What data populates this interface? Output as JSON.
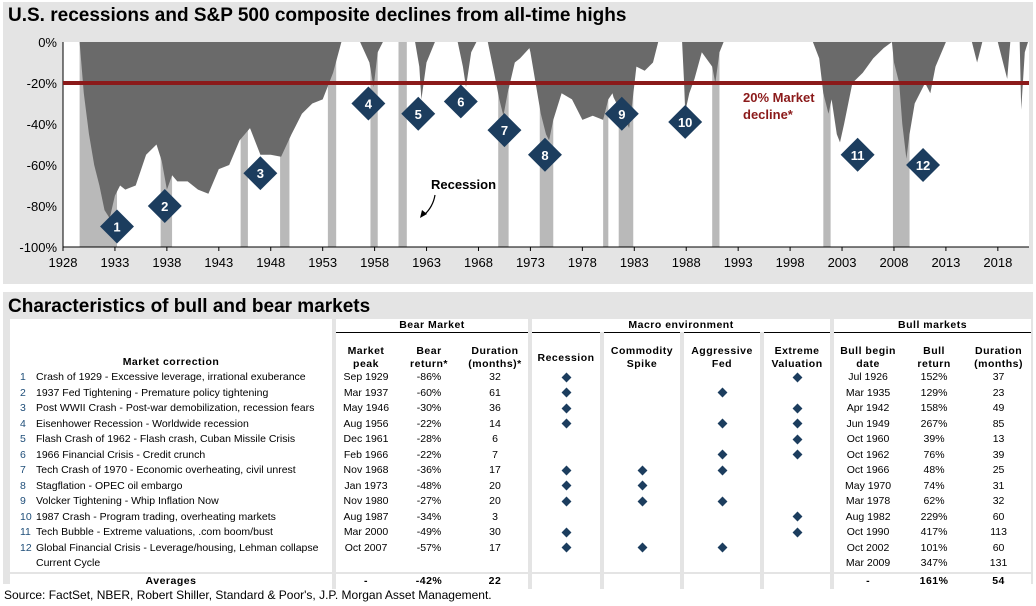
{
  "chart_title": "U.S. recessions and S&P 500 composite declines from all-time highs",
  "table_title": "Characteristics of bull and bear markets",
  "source": "Source: FactSet, NBER, Robert Shiller, Standard & Poor's, J.P. Morgan Asset Management.",
  "colors": {
    "panel_bg": "#e4e4e4",
    "plot_bg": "#ffffff",
    "recession_band": "#b9b9b9",
    "drawdown_area": "#6a6a6a",
    "threshold_line": "#8b1a1a",
    "marker": "#1c3d5e",
    "annotation_text": "#8b1a1a"
  },
  "chart_data": {
    "type": "area",
    "xlim": [
      1928,
      2021
    ],
    "ylim": [
      -100,
      0
    ],
    "x_ticks": [
      1928,
      1933,
      1938,
      1943,
      1948,
      1953,
      1958,
      1963,
      1968,
      1973,
      1978,
      1983,
      1988,
      1993,
      1998,
      2003,
      2008,
      2013,
      2018
    ],
    "y_ticks": [
      0,
      -20,
      -40,
      -60,
      -80,
      -100
    ],
    "y_tick_labels": [
      "0%",
      "-20%",
      "-40%",
      "-60%",
      "-80%",
      "-100%"
    ],
    "threshold": {
      "value": -20,
      "label_line1": "20% Market",
      "label_line2": "decline*"
    },
    "recession_label": "Recession",
    "recessions": [
      [
        1929.6,
        1933.2
      ],
      [
        1937.4,
        1938.5
      ],
      [
        1945.1,
        1945.8
      ],
      [
        1948.9,
        1949.8
      ],
      [
        1953.5,
        1954.3
      ],
      [
        1957.6,
        1958.3
      ],
      [
        1960.3,
        1961.1
      ],
      [
        1969.9,
        1970.9
      ],
      [
        1973.9,
        1975.2
      ],
      [
        1980.0,
        1980.5
      ],
      [
        1981.5,
        1982.9
      ],
      [
        1990.5,
        1991.2
      ],
      [
        2001.2,
        2001.9
      ],
      [
        2007.9,
        2009.5
      ]
    ],
    "drawdown": [
      [
        1928,
        0
      ],
      [
        1929.6,
        0
      ],
      [
        1930.0,
        -25
      ],
      [
        1930.5,
        -45
      ],
      [
        1931.0,
        -60
      ],
      [
        1931.5,
        -70
      ],
      [
        1932.0,
        -82
      ],
      [
        1932.5,
        -86
      ],
      [
        1933.0,
        -75
      ],
      [
        1933.5,
        -70
      ],
      [
        1934.0,
        -72
      ],
      [
        1935.0,
        -70
      ],
      [
        1936.0,
        -55
      ],
      [
        1937.0,
        -50
      ],
      [
        1937.5,
        -58
      ],
      [
        1938.0,
        -72
      ],
      [
        1938.5,
        -65
      ],
      [
        1939.0,
        -68
      ],
      [
        1940.0,
        -68
      ],
      [
        1941.0,
        -72
      ],
      [
        1942.0,
        -74
      ],
      [
        1943.0,
        -62
      ],
      [
        1944.0,
        -60
      ],
      [
        1945.0,
        -48
      ],
      [
        1946.0,
        -42
      ],
      [
        1947.0,
        -55
      ],
      [
        1948.0,
        -55
      ],
      [
        1949.0,
        -56
      ],
      [
        1950.0,
        -45
      ],
      [
        1951.0,
        -35
      ],
      [
        1952.0,
        -30
      ],
      [
        1953.0,
        -28
      ],
      [
        1954.0,
        -15
      ],
      [
        1954.8,
        0
      ],
      [
        1956.6,
        0
      ],
      [
        1957.5,
        -10
      ],
      [
        1957.9,
        -22
      ],
      [
        1958.3,
        -5
      ],
      [
        1958.8,
        0
      ],
      [
        1961.9,
        0
      ],
      [
        1962.3,
        -12
      ],
      [
        1962.5,
        -28
      ],
      [
        1963.0,
        -10
      ],
      [
        1963.8,
        0
      ],
      [
        1966.0,
        0
      ],
      [
        1966.5,
        -12
      ],
      [
        1966.8,
        -22
      ],
      [
        1967.3,
        -5
      ],
      [
        1967.8,
        0
      ],
      [
        1968.9,
        0
      ],
      [
        1969.5,
        -15
      ],
      [
        1970.0,
        -28
      ],
      [
        1970.4,
        -36
      ],
      [
        1970.8,
        -25
      ],
      [
        1971.5,
        -10
      ],
      [
        1972.0,
        -8
      ],
      [
        1972.9,
        -3
      ],
      [
        1973.0,
        -5
      ],
      [
        1973.5,
        -20
      ],
      [
        1974.0,
        -35
      ],
      [
        1974.5,
        -45
      ],
      [
        1974.8,
        -48
      ],
      [
        1975.2,
        -38
      ],
      [
        1976.0,
        -25
      ],
      [
        1977.0,
        -28
      ],
      [
        1978.0,
        -38
      ],
      [
        1979.0,
        -36
      ],
      [
        1980.0,
        -38
      ],
      [
        1980.5,
        -28
      ],
      [
        1980.9,
        -25
      ],
      [
        1981.0,
        -27
      ],
      [
        1981.5,
        -32
      ],
      [
        1982.0,
        -36
      ],
      [
        1982.5,
        -42
      ],
      [
        1982.8,
        -30
      ],
      [
        1983.2,
        -12
      ],
      [
        1984.0,
        -14
      ],
      [
        1984.8,
        -10
      ],
      [
        1985.3,
        0
      ],
      [
        1987.6,
        0
      ],
      [
        1987.8,
        -20
      ],
      [
        1987.9,
        -34
      ],
      [
        1988.3,
        -25
      ],
      [
        1988.8,
        -18
      ],
      [
        1989.5,
        -5
      ],
      [
        1990.5,
        -12
      ],
      [
        1990.8,
        -20
      ],
      [
        1991.2,
        -5
      ],
      [
        1991.6,
        0
      ],
      [
        2000.2,
        0
      ],
      [
        2000.8,
        -8
      ],
      [
        2001.2,
        -25
      ],
      [
        2001.7,
        -35
      ],
      [
        2002.0,
        -28
      ],
      [
        2002.5,
        -45
      ],
      [
        2002.8,
        -49
      ],
      [
        2003.2,
        -40
      ],
      [
        2004.0,
        -20
      ],
      [
        2005.0,
        -15
      ],
      [
        2006.0,
        -8
      ],
      [
        2007.0,
        -3
      ],
      [
        2007.8,
        0
      ],
      [
        2008.0,
        -10
      ],
      [
        2008.5,
        -20
      ],
      [
        2008.8,
        -40
      ],
      [
        2009.2,
        -57
      ],
      [
        2009.5,
        -45
      ],
      [
        2010.0,
        -30
      ],
      [
        2011.0,
        -20
      ],
      [
        2011.5,
        -25
      ],
      [
        2012.0,
        -12
      ],
      [
        2013.0,
        0
      ],
      [
        2015.5,
        0
      ],
      [
        2016.0,
        -10
      ],
      [
        2016.5,
        0
      ],
      [
        2018.0,
        0
      ],
      [
        2018.9,
        -18
      ],
      [
        2019.2,
        0
      ],
      [
        2020.1,
        0
      ],
      [
        2020.25,
        -33
      ],
      [
        2020.6,
        -5
      ],
      [
        2020.9,
        0
      ],
      [
        2021,
        0
      ]
    ],
    "markers": [
      {
        "label": "1",
        "x": 1933.2,
        "y": -90
      },
      {
        "label": "2",
        "x": 1937.8,
        "y": -80
      },
      {
        "label": "3",
        "x": 1947.0,
        "y": -64
      },
      {
        "label": "4",
        "x": 1957.4,
        "y": -30
      },
      {
        "label": "5",
        "x": 1962.2,
        "y": -35
      },
      {
        "label": "6",
        "x": 1966.3,
        "y": -29
      },
      {
        "label": "7",
        "x": 1970.5,
        "y": -43
      },
      {
        "label": "8",
        "x": 1974.4,
        "y": -55
      },
      {
        "label": "9",
        "x": 1981.8,
        "y": -35
      },
      {
        "label": "10",
        "x": 1987.9,
        "y": -39
      },
      {
        "label": "11",
        "x": 2004.5,
        "y": -55
      },
      {
        "label": "12",
        "x": 2010.8,
        "y": -60
      }
    ]
  },
  "table": {
    "groups": {
      "bear": "Bear Market",
      "macro": "Macro environment",
      "bull": "Bull markets"
    },
    "headers": {
      "correction": "Market correction",
      "peak_1": "Market",
      "peak_2": "peak",
      "return_1": "Bear",
      "return_2": "return*",
      "duration_1": "Duration",
      "duration_2": "(months)*",
      "recession": "Recession",
      "commodity_1": "Commodity",
      "commodity_2": "Spike",
      "fed_1": "Aggressive",
      "fed_2": "Fed",
      "valuation_1": "Extreme",
      "valuation_2": "Valuation",
      "bull_begin_1": "Bull begin",
      "bull_begin_2": "date",
      "bull_return_1": "Bull",
      "bull_return_2": "return",
      "bull_duration_1": "Duration",
      "bull_duration_2": "(months)"
    },
    "rows": [
      {
        "n": "1",
        "name": "Crash of 1929 - Excessive leverage, irrational exuberance",
        "peak": "Sep 1929",
        "ret": "-86%",
        "dur": "32",
        "recession": true,
        "commodity": false,
        "fed": false,
        "valuation": true,
        "bull_date": "Jul 1926",
        "bull_ret": "152%",
        "bull_dur": "37"
      },
      {
        "n": "2",
        "name": "1937 Fed Tightening - Premature policy tightening",
        "peak": "Mar 1937",
        "ret": "-60%",
        "dur": "61",
        "recession": true,
        "commodity": false,
        "fed": true,
        "valuation": false,
        "bull_date": "Mar 1935",
        "bull_ret": "129%",
        "bull_dur": "23"
      },
      {
        "n": "3",
        "name": "Post WWII Crash - Post-war demobilization, recession fears",
        "peak": "May 1946",
        "ret": "-30%",
        "dur": "36",
        "recession": true,
        "commodity": false,
        "fed": false,
        "valuation": true,
        "bull_date": "Apr 1942",
        "bull_ret": "158%",
        "bull_dur": "49"
      },
      {
        "n": "4",
        "name": "Eisenhower Recession - Worldwide recession",
        "peak": "Aug 1956",
        "ret": "-22%",
        "dur": "14",
        "recession": true,
        "commodity": false,
        "fed": true,
        "valuation": true,
        "bull_date": "Jun 1949",
        "bull_ret": "267%",
        "bull_dur": "85"
      },
      {
        "n": "5",
        "name": "Flash Crash of 1962 - Flash crash, Cuban Missile Crisis",
        "peak": "Dec 1961",
        "ret": "-28%",
        "dur": "6",
        "recession": false,
        "commodity": false,
        "fed": false,
        "valuation": true,
        "bull_date": "Oct 1960",
        "bull_ret": "39%",
        "bull_dur": "13"
      },
      {
        "n": "6",
        "name": "1966 Financial Crisis - Credit crunch",
        "peak": "Feb 1966",
        "ret": "-22%",
        "dur": "7",
        "recession": false,
        "commodity": false,
        "fed": true,
        "valuation": true,
        "bull_date": "Oct 1962",
        "bull_ret": "76%",
        "bull_dur": "39"
      },
      {
        "n": "7",
        "name": "Tech Crash of 1970 - Economic overheating, civil unrest",
        "peak": "Nov 1968",
        "ret": "-36%",
        "dur": "17",
        "recession": true,
        "commodity": true,
        "fed": true,
        "valuation": false,
        "bull_date": "Oct 1966",
        "bull_ret": "48%",
        "bull_dur": "25"
      },
      {
        "n": "8",
        "name": "Stagflation - OPEC oil embargo",
        "peak": "Jan 1973",
        "ret": "-48%",
        "dur": "20",
        "recession": true,
        "commodity": true,
        "fed": false,
        "valuation": false,
        "bull_date": "May 1970",
        "bull_ret": "74%",
        "bull_dur": "31"
      },
      {
        "n": "9",
        "name": "Volcker Tightening - Whip Inflation Now",
        "peak": "Nov 1980",
        "ret": "-27%",
        "dur": "20",
        "recession": true,
        "commodity": true,
        "fed": true,
        "valuation": false,
        "bull_date": "Mar 1978",
        "bull_ret": "62%",
        "bull_dur": "32"
      },
      {
        "n": "10",
        "name": "1987 Crash - Program trading, overheating markets",
        "peak": "Aug 1987",
        "ret": "-34%",
        "dur": "3",
        "recession": false,
        "commodity": false,
        "fed": false,
        "valuation": true,
        "bull_date": "Aug 1982",
        "bull_ret": "229%",
        "bull_dur": "60"
      },
      {
        "n": "11",
        "name": "Tech Bubble - Extreme valuations, .com boom/bust",
        "peak": "Mar 2000",
        "ret": "-49%",
        "dur": "30",
        "recession": true,
        "commodity": false,
        "fed": false,
        "valuation": true,
        "bull_date": "Oct 1990",
        "bull_ret": "417%",
        "bull_dur": "113"
      },
      {
        "n": "12",
        "name": "Global Financial Crisis - Leverage/housing, Lehman collapse",
        "peak": "Oct 2007",
        "ret": "-57%",
        "dur": "17",
        "recession": true,
        "commodity": true,
        "fed": true,
        "valuation": false,
        "bull_date": "Oct 2002",
        "bull_ret": "101%",
        "bull_dur": "60"
      },
      {
        "n": "",
        "name": "Current Cycle",
        "peak": "",
        "ret": "",
        "dur": "",
        "recession": false,
        "commodity": false,
        "fed": false,
        "valuation": false,
        "bull_date": "Mar 2009",
        "bull_ret": "347%",
        "bull_dur": "131"
      }
    ],
    "averages": {
      "label": "Averages",
      "peak": "-",
      "ret": "-42%",
      "dur": "22",
      "bull_date": "-",
      "bull_ret": "161%",
      "bull_dur": "54"
    }
  }
}
